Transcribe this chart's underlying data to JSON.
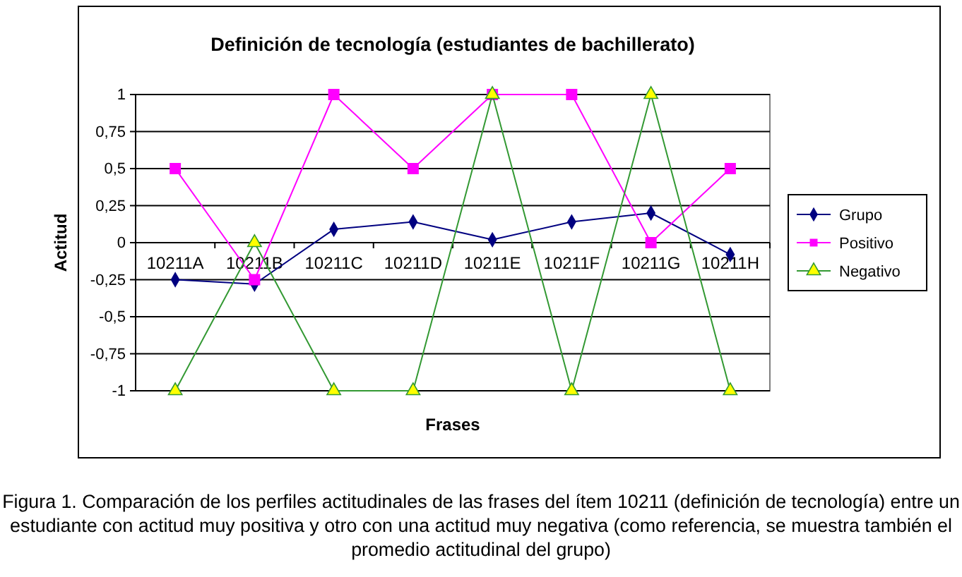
{
  "chart_data": {
    "type": "line",
    "title": "Definición de tecnología (estudiantes de bachillerato)",
    "xlabel": "Frases",
    "ylabel": "Actitud",
    "categories": [
      "10211A",
      "10211B",
      "10211C",
      "10211D",
      "10211E",
      "10211F",
      "10211G",
      "10211H"
    ],
    "series": [
      {
        "name": "Grupo",
        "color": "#000080",
        "marker": "diamond",
        "values": [
          -0.25,
          -0.28,
          0.09,
          0.14,
          0.02,
          0.14,
          0.2,
          -0.08
        ]
      },
      {
        "name": "Positivo",
        "color": "#ff00ff",
        "marker": "square",
        "values": [
          0.5,
          -0.25,
          1,
          0.5,
          1,
          1,
          0,
          0.5
        ]
      },
      {
        "name": "Negativo",
        "color": "#339933",
        "marker": "triangle",
        "values": [
          -1,
          0,
          -1,
          -1,
          1,
          -1,
          1,
          -1
        ]
      }
    ],
    "ylim": [
      -1,
      1
    ],
    "yticks": [
      {
        "value": -1,
        "label": "-1"
      },
      {
        "value": -0.75,
        "label": "-0,75"
      },
      {
        "value": -0.5,
        "label": "-0,5"
      },
      {
        "value": -0.25,
        "label": "-0,25"
      },
      {
        "value": 0,
        "label": "0"
      },
      {
        "value": 0.25,
        "label": "0,25"
      },
      {
        "value": 0.5,
        "label": "0,5"
      },
      {
        "value": 0.75,
        "label": "0,75"
      },
      {
        "value": 1,
        "label": "1"
      }
    ],
    "grid": "y",
    "legend": "right",
    "annotations": [
      "Figura 1. Comparación de los perfiles actitudinales de las frases del ítem 10211 (definición de tecnología) entre un estudiante con actitud muy positiva y otro con una actitud muy negativa (como referencia, se muestra también el promedio actitudinal del grupo)"
    ]
  }
}
